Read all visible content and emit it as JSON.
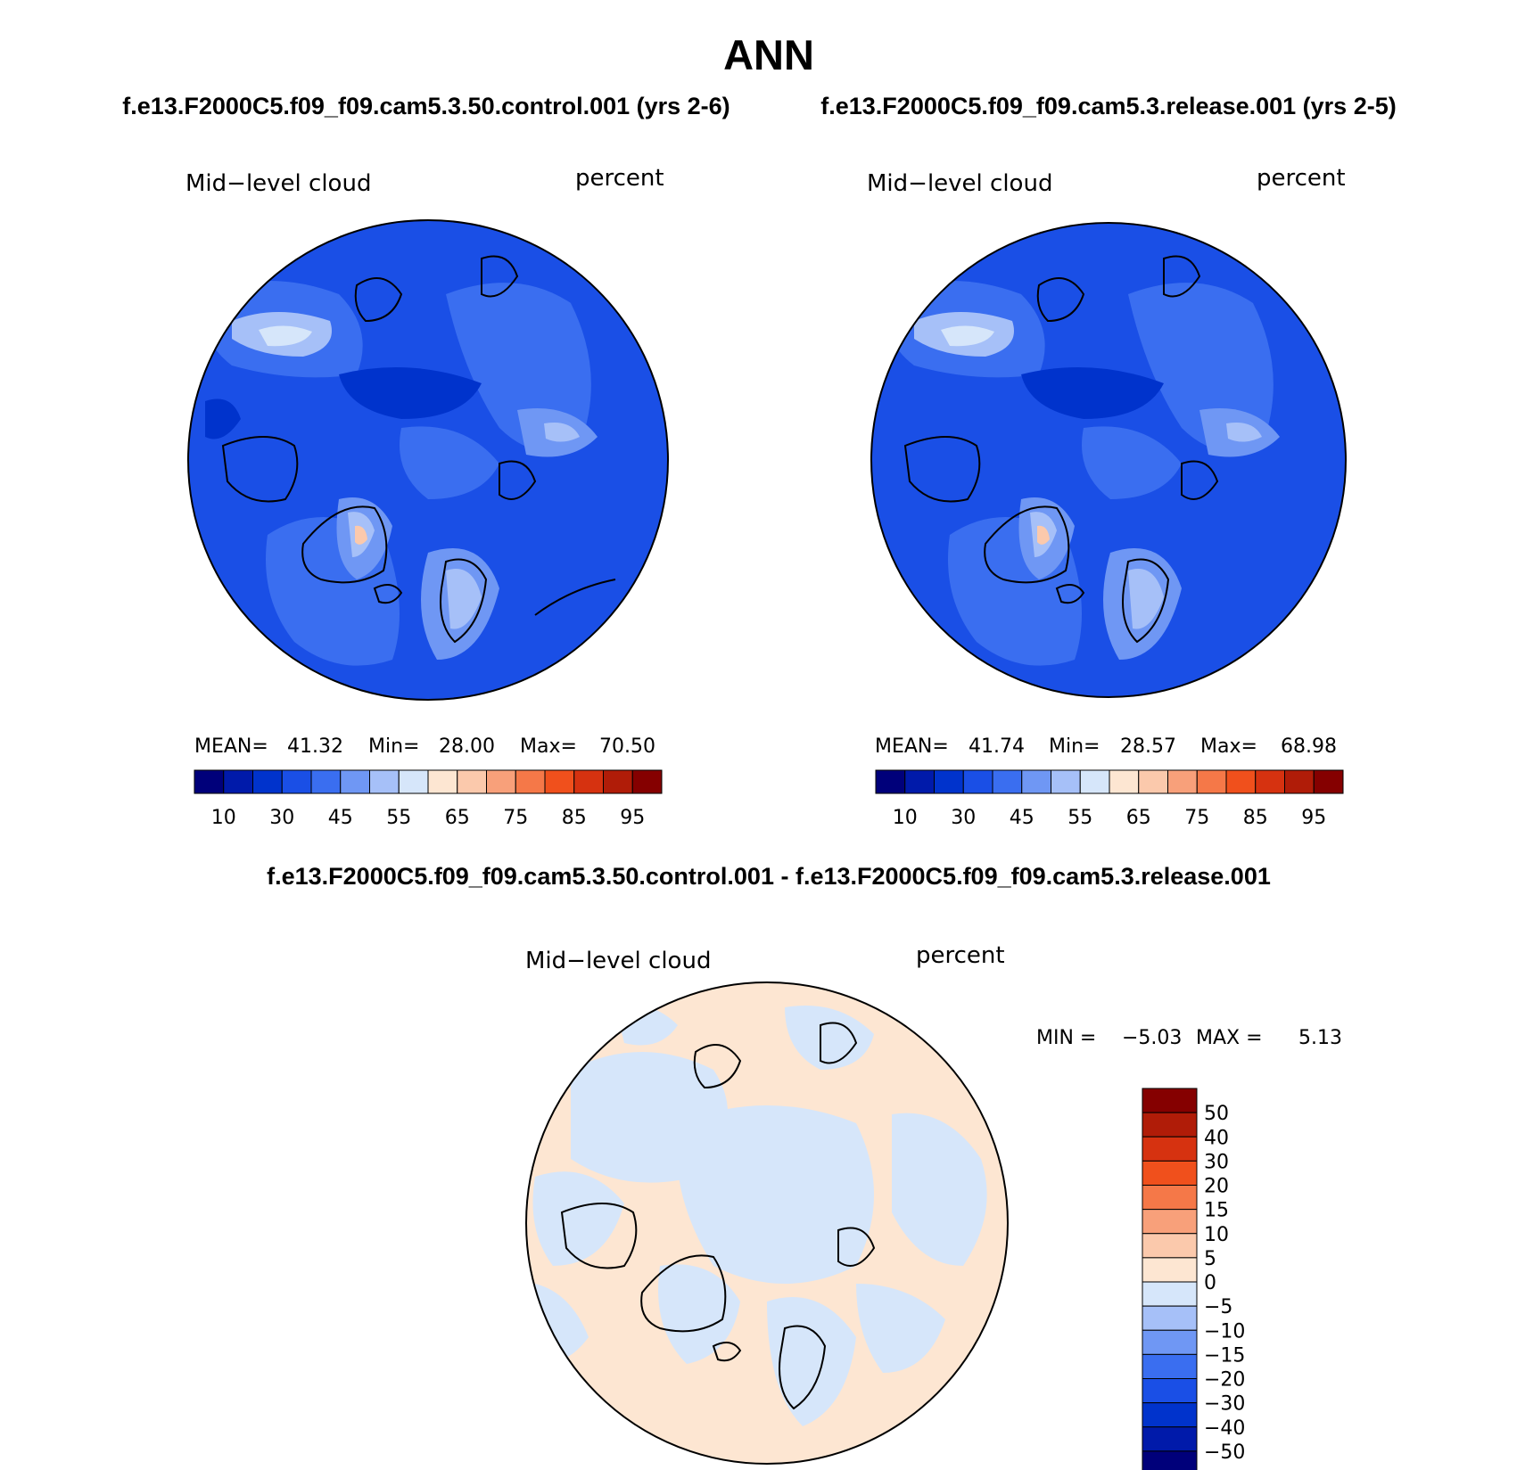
{
  "title": "ANN",
  "panels": [
    {
      "case_title": "f.e13.F2000C5.f09_f09.cam5.3.50.control.001 (yrs 2-6)",
      "variable": "Mid−level cloud",
      "units": "percent",
      "stats": {
        "mean_label": "MEAN=",
        "mean": "41.32",
        "min_label": "Min=",
        "min": "28.00",
        "max_label": "Max=",
        "max": "70.50"
      }
    },
    {
      "case_title": "f.e13.F2000C5.f09_f09.cam5.3.release.001 (yrs 2-5)",
      "variable": "Mid−level cloud",
      "units": "percent",
      "stats": {
        "mean_label": "MEAN=",
        "mean": "41.74",
        "min_label": "Min=",
        "min": "28.57",
        "max_label": "Max=",
        "max": "68.98"
      }
    }
  ],
  "diff_panel": {
    "case_title": "f.e13.F2000C5.f09_f09.cam5.3.50.control.001 - f.e13.F2000C5.f09_f09.cam5.3.release.001",
    "variable": "Mid−level cloud",
    "units": "percent",
    "min_label": "MIN =",
    "min": "−5.03",
    "max_label": "MAX =",
    "max": "5.13"
  },
  "colorbar_main": {
    "colors": [
      "#00007a",
      "#001aaa",
      "#0033cc",
      "#1a4fe6",
      "#3a6ef0",
      "#6f97f4",
      "#a6c0f8",
      "#d6e6fa",
      "#fde6d2",
      "#fbc9ac",
      "#f8a07a",
      "#f57848",
      "#f0501c",
      "#d63210",
      "#b01c08",
      "#850000"
    ],
    "tick_labels": [
      "10",
      "30",
      "45",
      "55",
      "65",
      "75",
      "85",
      "95"
    ]
  },
  "colorbar_diff": {
    "colors": [
      "#850000",
      "#b01c08",
      "#d63210",
      "#f0501c",
      "#f57848",
      "#f8a07a",
      "#fbc9ac",
      "#fde6d2",
      "#d6e6fa",
      "#a6c0f8",
      "#6f97f4",
      "#3a6ef0",
      "#1a4fe6",
      "#0033cc",
      "#001aaa",
      "#00007a"
    ],
    "tick_labels": [
      "50",
      "40",
      "30",
      "20",
      "15",
      "10",
      "5",
      "0",
      "−5",
      "−10",
      "−15",
      "−20",
      "−30",
      "−40",
      "−50"
    ]
  }
}
